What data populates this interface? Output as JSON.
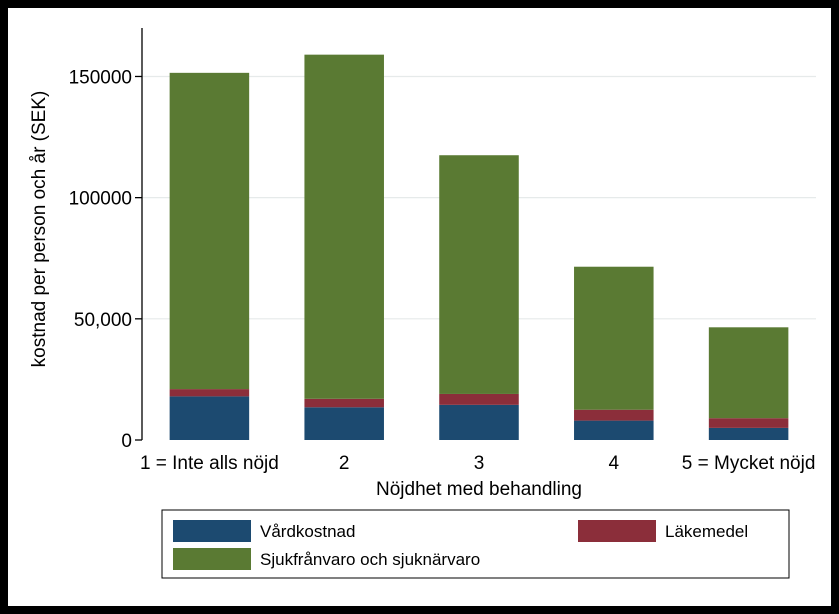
{
  "chart_data": {
    "type": "bar",
    "stacked": true,
    "categories": [
      "1 = Inte alls nöjd",
      "2",
      "3",
      "4",
      "5 = Mycket nöjd"
    ],
    "series": [
      {
        "name": "Vårdkostnad",
        "color": "#1c4a70",
        "values": [
          18000,
          13500,
          14500,
          8000,
          5000
        ]
      },
      {
        "name": "Läkemedel",
        "color": "#8b2e3a",
        "values": [
          3000,
          3500,
          4500,
          4500,
          4000
        ]
      },
      {
        "name": "Sjukfrånvaro och sjuknärvaro",
        "color": "#5a7a33",
        "values": [
          130500,
          142000,
          98500,
          59000,
          37500
        ]
      }
    ],
    "xlabel": "Nöjdhet med behandling",
    "ylabel": "kostnad per person och år (SEK)",
    "ylim": [
      0,
      170000
    ],
    "yticks": [
      0,
      50000,
      100000,
      150000
    ],
    "ytick_labels": [
      "0",
      "50,000",
      "100000",
      "150000"
    ],
    "grid": true,
    "legend_position": "bottom"
  }
}
